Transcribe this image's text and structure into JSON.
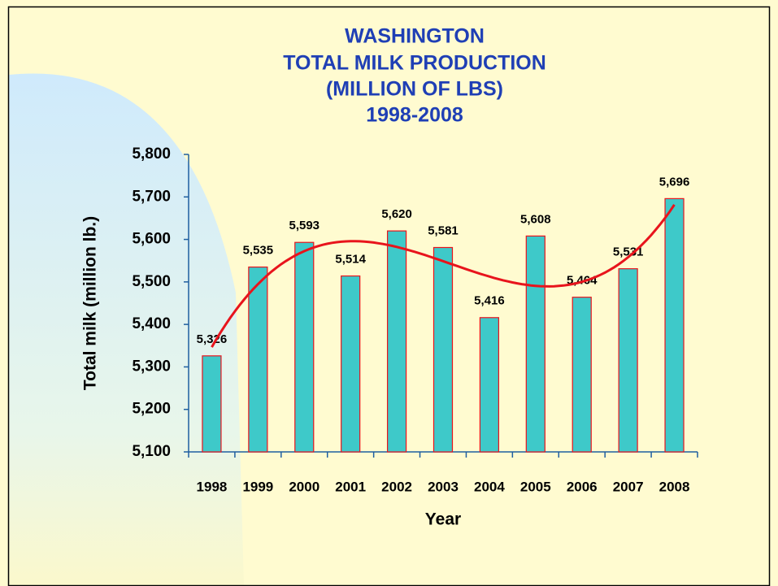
{
  "chart_data": {
    "type": "bar",
    "title": [
      "WASHINGTON",
      "TOTAL MILK PRODUCTION",
      "(MILLION OF LBS)",
      "1998-2008"
    ],
    "xlabel": "Year",
    "ylabel": "Total milk (million lb.)",
    "categories": [
      "1998",
      "1999",
      "2000",
      "2001",
      "2002",
      "2003",
      "2004",
      "2005",
      "2006",
      "2007",
      "2008"
    ],
    "values": [
      5326,
      5535,
      5593,
      5514,
      5620,
      5581,
      5416,
      5608,
      5464,
      5531,
      5696
    ],
    "value_labels": [
      "5,326",
      "5,535",
      "5,593",
      "5,514",
      "5,620",
      "5,581",
      "5,416",
      "5,608",
      "5,464",
      "5,531",
      "5,696"
    ],
    "color": "#3ec9c9",
    "edge_color": "#e8141c",
    "trendline": {
      "type": "polynomial",
      "order": 3,
      "color": "#e8141c"
    },
    "ylim": [
      5100,
      5800
    ],
    "yticks": [
      {
        "value": 5100,
        "label": "5,100"
      },
      {
        "value": 5200,
        "label": "5,200"
      },
      {
        "value": 5300,
        "label": "5,300"
      },
      {
        "value": 5400,
        "label": "5,400"
      },
      {
        "value": 5500,
        "label": "5,500"
      },
      {
        "value": 5600,
        "label": "5,600"
      },
      {
        "value": 5700,
        "label": "5,700"
      },
      {
        "value": 5800,
        "label": "5,800"
      }
    ],
    "grid": false
  }
}
